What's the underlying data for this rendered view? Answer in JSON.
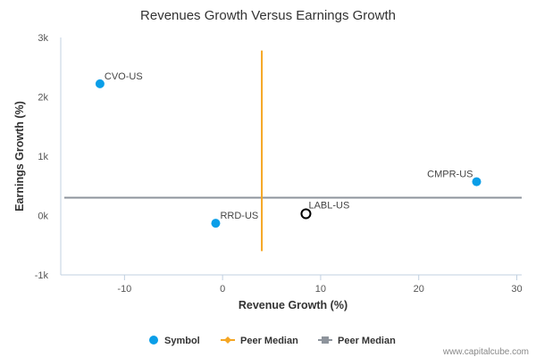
{
  "chart_data": {
    "type": "scatter",
    "title": "Revenues Growth Versus Earnings Growth",
    "xlabel": "Revenue Growth (%)",
    "ylabel": "Earnings Growth (%)",
    "xlim": [
      -16.5,
      30.5
    ],
    "ylim": [
      -1000,
      3000
    ],
    "x_ticks": [
      -10,
      0,
      10,
      20,
      30
    ],
    "x_tick_labels": [
      "-10",
      "0",
      "10",
      "20",
      "30"
    ],
    "y_ticks": [
      -1000,
      0,
      1000,
      2000,
      3000
    ],
    "y_tick_labels": [
      "-1k",
      "0k",
      "1k",
      "2k",
      "3k"
    ],
    "grid": false,
    "legend_position": "bottom-center",
    "points": [
      {
        "label": "CVO-US",
        "x": -12.5,
        "y": 2220,
        "group": "symbol"
      },
      {
        "label": "CMPR-US",
        "x": 25.9,
        "y": 570,
        "group": "symbol"
      },
      {
        "label": "RRD-US",
        "x": -0.7,
        "y": -130,
        "group": "symbol"
      },
      {
        "label": "LABL-US",
        "x": 8.5,
        "y": 30,
        "group": "subject"
      }
    ],
    "peer_median_x": {
      "value": 4.0,
      "y_from": -600,
      "y_to": 2780
    },
    "peer_median_y": {
      "value": 300
    },
    "legend": [
      {
        "label": "Symbol",
        "type": "circle",
        "color": "#0a9ee8"
      },
      {
        "label": "Peer Median",
        "type": "line-diamond",
        "color": "#f5a623"
      },
      {
        "label": "Peer Median",
        "type": "line-square",
        "color": "#8e949c"
      }
    ],
    "colors": {
      "symbol": "#0a9ee8",
      "peer_median_x": "#f5a623",
      "peer_median_y": "#8e949c",
      "axis": "#c0d0e0",
      "subject_stroke": "#000000"
    }
  },
  "credit": "www.capitalcube.com"
}
